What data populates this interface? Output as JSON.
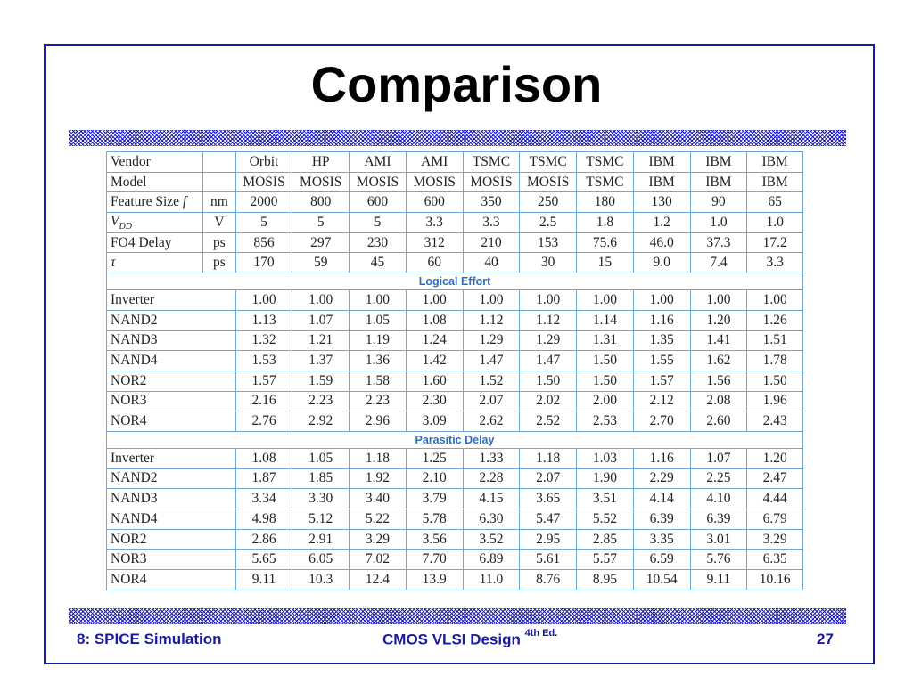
{
  "slide": {
    "title": "Comparison",
    "footer_left": "8: SPICE Simulation",
    "footer_center": "CMOS VLSI Design",
    "footer_center_sup": "4th Ed.",
    "page_number": "27"
  },
  "table": {
    "header_rows": [
      {
        "label": "Vendor",
        "unit": "",
        "values": [
          "Orbit",
          "HP",
          "AMI",
          "AMI",
          "TSMC",
          "TSMC",
          "TSMC",
          "IBM",
          "IBM",
          "IBM"
        ]
      },
      {
        "label": "Model",
        "unit": "",
        "values": [
          "MOSIS",
          "MOSIS",
          "MOSIS",
          "MOSIS",
          "MOSIS",
          "MOSIS",
          "TSMC",
          "IBM",
          "IBM",
          "IBM"
        ]
      },
      {
        "label": "Feature Size",
        "label_suffix": "f",
        "unit": "nm",
        "values": [
          "2000",
          "800",
          "600",
          "600",
          "350",
          "250",
          "180",
          "130",
          "90",
          "65"
        ]
      },
      {
        "label": "V",
        "label_sub": "DD",
        "unit": "V",
        "values": [
          "5",
          "5",
          "5",
          "3.3",
          "3.3",
          "2.5",
          "1.8",
          "1.2",
          "1.0",
          "1.0"
        ]
      },
      {
        "label": "FO4 Delay",
        "unit": "ps",
        "values": [
          "856",
          "297",
          "230",
          "312",
          "210",
          "153",
          "75.6",
          "46.0",
          "37.3",
          "17.2"
        ]
      },
      {
        "label": "τ",
        "unit": "ps",
        "values": [
          "170",
          "59",
          "45",
          "60",
          "40",
          "30",
          "15",
          "9.0",
          "7.4",
          "3.3"
        ]
      }
    ],
    "sections": [
      {
        "title": "Logical Effort",
        "rows": [
          {
            "label": "Inverter",
            "values": [
              "1.00",
              "1.00",
              "1.00",
              "1.00",
              "1.00",
              "1.00",
              "1.00",
              "1.00",
              "1.00",
              "1.00"
            ]
          },
          {
            "label": "NAND2",
            "values": [
              "1.13",
              "1.07",
              "1.05",
              "1.08",
              "1.12",
              "1.12",
              "1.14",
              "1.16",
              "1.20",
              "1.26"
            ]
          },
          {
            "label": "NAND3",
            "values": [
              "1.32",
              "1.21",
              "1.19",
              "1.24",
              "1.29",
              "1.29",
              "1.31",
              "1.35",
              "1.41",
              "1.51"
            ]
          },
          {
            "label": "NAND4",
            "values": [
              "1.53",
              "1.37",
              "1.36",
              "1.42",
              "1.47",
              "1.47",
              "1.50",
              "1.55",
              "1.62",
              "1.78"
            ]
          },
          {
            "label": "NOR2",
            "values": [
              "1.57",
              "1.59",
              "1.58",
              "1.60",
              "1.52",
              "1.50",
              "1.50",
              "1.57",
              "1.56",
              "1.50"
            ]
          },
          {
            "label": "NOR3",
            "values": [
              "2.16",
              "2.23",
              "2.23",
              "2.30",
              "2.07",
              "2.02",
              "2.00",
              "2.12",
              "2.08",
              "1.96"
            ]
          },
          {
            "label": "NOR4",
            "values": [
              "2.76",
              "2.92",
              "2.96",
              "3.09",
              "2.62",
              "2.52",
              "2.53",
              "2.70",
              "2.60",
              "2.43"
            ]
          }
        ]
      },
      {
        "title": "Parasitic Delay",
        "rows": [
          {
            "label": "Inverter",
            "values": [
              "1.08",
              "1.05",
              "1.18",
              "1.25",
              "1.33",
              "1.18",
              "1.03",
              "1.16",
              "1.07",
              "1.20"
            ]
          },
          {
            "label": "NAND2",
            "values": [
              "1.87",
              "1.85",
              "1.92",
              "2.10",
              "2.28",
              "2.07",
              "1.90",
              "2.29",
              "2.25",
              "2.47"
            ]
          },
          {
            "label": "NAND3",
            "values": [
              "3.34",
              "3.30",
              "3.40",
              "3.79",
              "4.15",
              "3.65",
              "3.51",
              "4.14",
              "4.10",
              "4.44"
            ]
          },
          {
            "label": "NAND4",
            "values": [
              "4.98",
              "5.12",
              "5.22",
              "5.78",
              "6.30",
              "5.47",
              "5.52",
              "6.39",
              "6.39",
              "6.79"
            ]
          },
          {
            "label": "NOR2",
            "values": [
              "2.86",
              "2.91",
              "3.29",
              "3.56",
              "3.52",
              "2.95",
              "2.85",
              "3.35",
              "3.01",
              "3.29"
            ]
          },
          {
            "label": "NOR3",
            "values": [
              "5.65",
              "6.05",
              "7.02",
              "7.70",
              "6.89",
              "5.61",
              "5.57",
              "6.59",
              "5.76",
              "6.35"
            ]
          },
          {
            "label": "NOR4",
            "values": [
              "9.11",
              "10.3",
              "12.4",
              "13.9",
              "11.0",
              "8.76",
              "8.95",
              "10.54",
              "9.11",
              "10.16"
            ]
          }
        ]
      }
    ]
  },
  "colors": {
    "frame": "#1a1aa0",
    "table_border": "#6fa8d8",
    "section_title": "#2c6fc0",
    "footer_text": "#1a1aa0"
  }
}
